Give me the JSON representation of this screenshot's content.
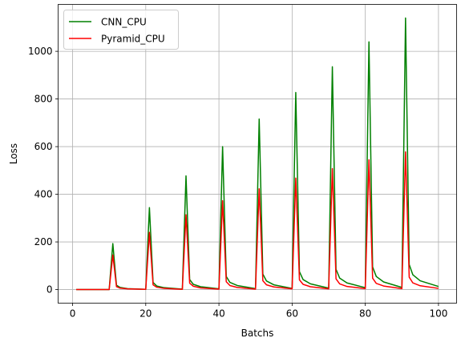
{
  "chart_data": {
    "type": "line",
    "title": "",
    "xlabel": "Batchs",
    "ylabel": "Loss",
    "xlim": [
      -3.95,
      104.95
    ],
    "ylim": [
      -57,
      1197
    ],
    "xticks": [
      0,
      20,
      40,
      60,
      80,
      100
    ],
    "yticks": [
      0,
      200,
      400,
      600,
      800,
      1000
    ],
    "grid": true,
    "legend": "top-left",
    "series": [
      {
        "name": "CNN_CPU",
        "color": "#008000",
        "x": [
          1,
          10,
          11,
          12,
          13,
          15,
          20,
          21,
          22,
          23,
          25,
          30,
          31,
          32,
          33,
          35,
          40,
          41,
          42,
          43,
          45,
          50,
          51,
          52,
          53,
          55,
          60,
          61,
          62,
          63,
          65,
          70,
          71,
          72,
          73,
          75,
          80,
          81,
          82,
          83,
          85,
          90,
          91,
          92,
          93,
          95,
          100
        ],
        "y": [
          0,
          0,
          193,
          18,
          9,
          4,
          1,
          344,
          30,
          15,
          8,
          2,
          477,
          42,
          22,
          12,
          3,
          600,
          55,
          30,
          17,
          4,
          716,
          65,
          36,
          20,
          5,
          827,
          75,
          42,
          24,
          6,
          935,
          85,
          48,
          28,
          8,
          1040,
          95,
          55,
          32,
          9,
          1140,
          105,
          62,
          37,
          13
        ]
      },
      {
        "name": "Pyramid_CPU",
        "color": "#ff0000",
        "x": [
          1,
          10,
          11,
          12,
          13,
          15,
          20,
          21,
          22,
          23,
          25,
          30,
          31,
          32,
          33,
          35,
          40,
          41,
          42,
          43,
          45,
          50,
          51,
          52,
          53,
          55,
          60,
          61,
          62,
          63,
          65,
          70,
          71,
          72,
          73,
          75,
          80,
          81,
          82,
          83,
          85,
          90,
          91,
          92,
          93,
          95,
          100
        ],
        "y": [
          0,
          0,
          145,
          12,
          6,
          3,
          1,
          240,
          20,
          10,
          5,
          1,
          314,
          27,
          14,
          7,
          2,
          373,
          33,
          17,
          9,
          2,
          423,
          37,
          20,
          11,
          3,
          468,
          41,
          22,
          12,
          3,
          508,
          45,
          24,
          13,
          4,
          545,
          48,
          26,
          15,
          4,
          578,
          52,
          28,
          16,
          5
        ]
      }
    ]
  }
}
